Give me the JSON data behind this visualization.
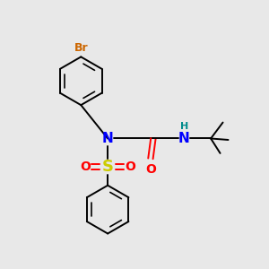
{
  "background_color": "#e8e8e8",
  "bond_color": "#000000",
  "atom_colors": {
    "Br": "#cc6600",
    "N": "#0000ff",
    "S": "#cccc00",
    "O": "#ff0000",
    "H": "#008b8b",
    "C": "#000000"
  },
  "figsize": [
    3.0,
    3.0
  ],
  "dpi": 100,
  "xlim": [
    0,
    10
  ],
  "ylim": [
    0,
    10
  ]
}
